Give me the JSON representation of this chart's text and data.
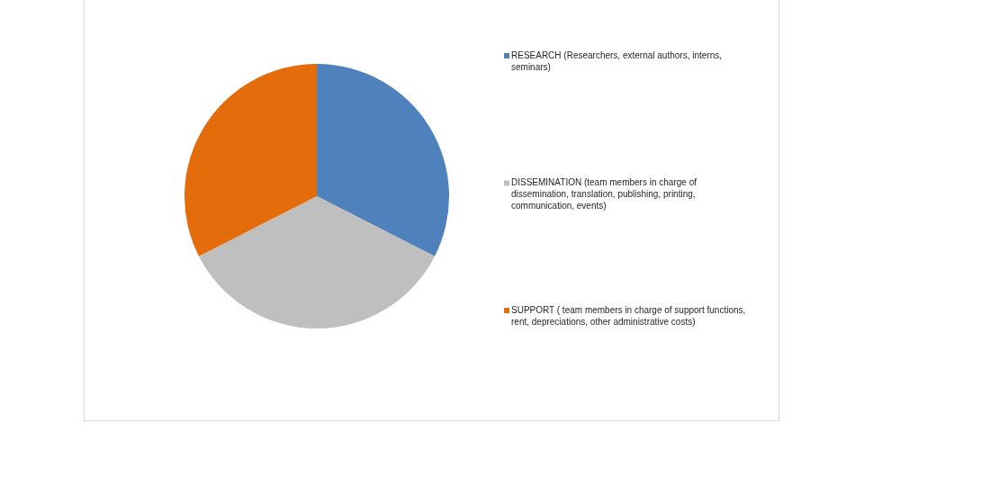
{
  "chart_data": {
    "type": "pie",
    "categories": [
      "RESEARCH (Researchers, external authors, interns, seminars)",
      "DISSEMINATION (team members in charge of dissemination, translation, publishing, printing, communication, events)",
      "SUPPORT ( team members in charge of support functions, rent, depreciations, other administrative costs)"
    ],
    "values": [
      32.5,
      35,
      32.5
    ],
    "colors": [
      "#4f81bd",
      "#bfbfbf",
      "#e46c0a"
    ],
    "legend": "right"
  }
}
